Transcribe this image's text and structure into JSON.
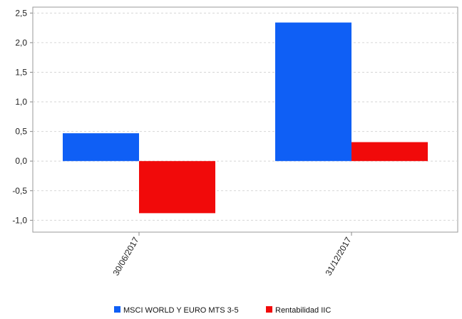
{
  "chart_data": {
    "type": "bar",
    "categories": [
      "30/06/2017",
      "31/12/2017"
    ],
    "series": [
      {
        "name": "MSCI WORLD Y EURO MTS 3-5",
        "color": "#0f5ff5",
        "values": [
          0.47,
          2.34
        ]
      },
      {
        "name": "Rentabilidad IIC",
        "color": "#f10a0a",
        "values": [
          -0.88,
          0.32
        ]
      }
    ],
    "ylim": [
      -1.2,
      2.6
    ],
    "yticks": [
      "-1,0",
      "-0,5",
      "0,0",
      "0,5",
      "1,0",
      "1,5",
      "2,0",
      "2,5"
    ],
    "ytick_values": [
      -1.0,
      -0.5,
      0.0,
      0.5,
      1.0,
      1.5,
      2.0,
      2.5
    ],
    "grid": true,
    "legend": "bottom"
  }
}
